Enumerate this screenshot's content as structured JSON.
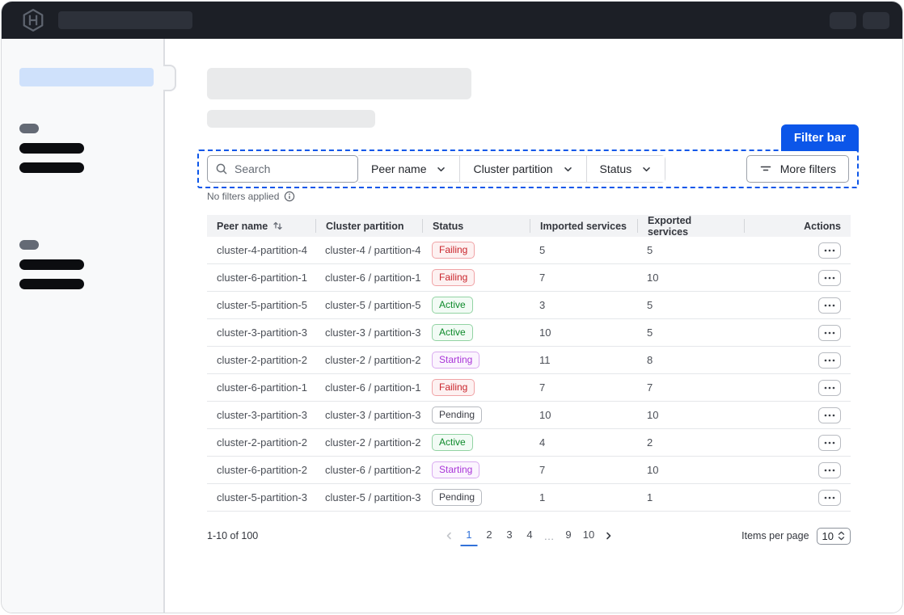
{
  "colors": {
    "accent_blue": "#0c56e9",
    "page_active_blue": "#3272d9",
    "topbar_bg": "#1c1f26",
    "sidebar_bg": "#f8f9fa"
  },
  "topbar": {
    "logo": "hashicorp-logo"
  },
  "filter_bar": {
    "annotation_label": "Filter bar",
    "search_placeholder": "Search",
    "dropdowns": [
      {
        "label": "Peer name"
      },
      {
        "label": "Cluster partition"
      },
      {
        "label": "Status"
      }
    ],
    "more_filters_label": "More filters",
    "status_text": "No filters applied"
  },
  "table": {
    "columns": [
      "Peer name",
      "Cluster partition",
      "Status",
      "Imported services",
      "Exported services",
      "Actions"
    ],
    "rows": [
      {
        "peer_name": "cluster-4-partition-4",
        "cluster_partition": "cluster-4 / partition-4",
        "status": "Failing",
        "imported": "5",
        "exported": "5"
      },
      {
        "peer_name": "cluster-6-partition-1",
        "cluster_partition": "cluster-6 / partition-1",
        "status": "Failing",
        "imported": "7",
        "exported": "10"
      },
      {
        "peer_name": "cluster-5-partition-5",
        "cluster_partition": "cluster-5 / partition-5",
        "status": "Active",
        "imported": "3",
        "exported": "5"
      },
      {
        "peer_name": "cluster-3-partition-3",
        "cluster_partition": "cluster-3 / partition-3",
        "status": "Active",
        "imported": "10",
        "exported": "5"
      },
      {
        "peer_name": "cluster-2-partition-2",
        "cluster_partition": "cluster-2 / partition-2",
        "status": "Starting",
        "imported": "11",
        "exported": "8"
      },
      {
        "peer_name": "cluster-6-partition-1",
        "cluster_partition": "cluster-6 / partition-1",
        "status": "Failing",
        "imported": "7",
        "exported": "7"
      },
      {
        "peer_name": "cluster-3-partition-3",
        "cluster_partition": "cluster-3 / partition-3",
        "status": "Pending",
        "imported": "10",
        "exported": "10"
      },
      {
        "peer_name": "cluster-2-partition-2",
        "cluster_partition": "cluster-2 / partition-2",
        "status": "Active",
        "imported": "4",
        "exported": "2"
      },
      {
        "peer_name": "cluster-6-partition-2",
        "cluster_partition": "cluster-6 / partition-2",
        "status": "Starting",
        "imported": "7",
        "exported": "10"
      },
      {
        "peer_name": "cluster-5-partition-3",
        "cluster_partition": "cluster-5 / partition-3",
        "status": "Pending",
        "imported": "1",
        "exported": "1"
      }
    ]
  },
  "status_styles": {
    "Failing": {
      "text": "#c9242b",
      "border": "#f0a3a6",
      "bg": "#fdf1f1"
    },
    "Active": {
      "text": "#0e8a2b",
      "border": "#92d3a3",
      "bg": "#f2fbf5"
    },
    "Starting": {
      "text": "#a935d8",
      "border": "#d9aaf0",
      "bg": "#fbf4fe"
    },
    "Pending": {
      "text": "#3b3d45",
      "border": "#b7bac0",
      "bg": "#ffffff"
    }
  },
  "pagination": {
    "range_text": "1-10 of 100",
    "pages": [
      "1",
      "2",
      "3",
      "4",
      "…",
      "9",
      "10"
    ],
    "current_page": "1",
    "items_per_page_label": "Items per page",
    "items_per_page_value": "10"
  }
}
